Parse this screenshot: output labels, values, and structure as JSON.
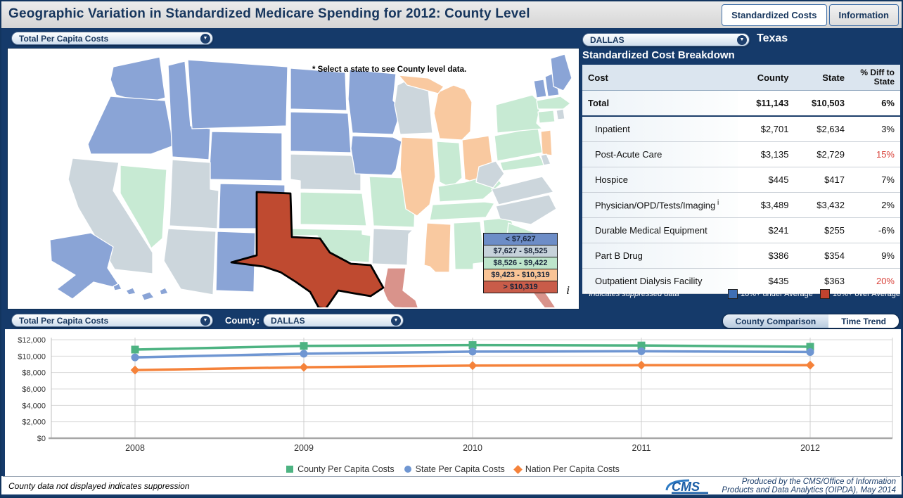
{
  "header": {
    "title": "Geographic Variation in Standardized Medicare Spending for 2012: County Level",
    "tabs": [
      {
        "label": "Standardized Costs",
        "active": true
      },
      {
        "label": "Information",
        "active": false
      }
    ]
  },
  "map_panel": {
    "metric_dropdown": "Total Per Capita Costs",
    "hint": "* Select a state to see County level data.",
    "info_icon": "i",
    "legend": [
      {
        "label": "< $7,627",
        "color": "#6d8dc7"
      },
      {
        "label": "$7,627 - $8,525",
        "color": "#c6d2da"
      },
      {
        "label": "$8,526 - $9,422",
        "color": "#bde5cb"
      },
      {
        "label": "$9,423 - $10,319",
        "color": "#f9c496"
      },
      {
        "label": "> $10,319",
        "color": "#c95c49"
      }
    ],
    "palette": {
      "c1": "#8aa4d6",
      "c2": "#ccd6dc",
      "c3": "#c7ead3",
      "c4": "#f9c9a0",
      "c5": "#d9938b",
      "selected": "#bf4a30"
    },
    "selected_state": "TX",
    "state_categories": {
      "WA": "c1",
      "OR": "c1",
      "CA": "c2",
      "NV": "c3",
      "ID": "c1",
      "MT": "c1",
      "WY": "c1",
      "UT": "c2",
      "CO": "c1",
      "AZ": "c2",
      "NM": "c1",
      "ND": "c1",
      "SD": "c1",
      "NE": "c2",
      "KS": "c3",
      "OK": "c3",
      "TX": "selected",
      "MN": "c1",
      "IA": "c1",
      "MO": "c3",
      "AR": "c2",
      "LA": "c5",
      "WI": "c2",
      "IL": "c4",
      "MI": "c4",
      "IN": "c3",
      "OH": "c4",
      "KY": "c3",
      "TN": "c3",
      "MS": "c4",
      "AL": "c3",
      "GA": "c3",
      "FL": "c5",
      "SC": "c3",
      "NC": "c2",
      "VA": "c2",
      "WV": "c2",
      "PA": "c3",
      "NY": "c3",
      "NJ": "c4",
      "MD": "c3",
      "DE": "c2",
      "VT": "c1",
      "NH": "c1",
      "ME": "c1",
      "MA": "c3",
      "CT": "c3",
      "RI": "c2",
      "AK": "c1",
      "HI": "c1"
    }
  },
  "breakdown_panel": {
    "county_dropdown": "DALLAS",
    "state_label": "Texas",
    "title": "Standardized Cost Breakdown",
    "table": {
      "columns": [
        "Cost",
        "County",
        "State",
        "% Diff to State"
      ],
      "rows": [
        {
          "label": "Total",
          "sup": "",
          "county": "$11,143",
          "state": "$10,503",
          "diff": "6%",
          "bold": true,
          "red": false
        },
        {
          "label": "Inpatient",
          "sup": "",
          "county": "$2,701",
          "state": "$2,634",
          "diff": "3%",
          "bold": false,
          "red": false
        },
        {
          "label": "Post-Acute Care",
          "sup": "",
          "county": "$3,135",
          "state": "$2,729",
          "diff": "15%",
          "bold": false,
          "red": true
        },
        {
          "label": "Hospice",
          "sup": "",
          "county": "$445",
          "state": "$417",
          "diff": "7%",
          "bold": false,
          "red": false
        },
        {
          "label": "Physician/OPD/Tests/Imaging",
          "sup": "i",
          "county": "$3,489",
          "state": "$3,432",
          "diff": "2%",
          "bold": false,
          "red": false
        },
        {
          "label": "Durable Medical Equipment",
          "sup": "",
          "county": "$241",
          "state": "$255",
          "diff": "-6%",
          "bold": false,
          "red": false
        },
        {
          "label": "Part B Drug",
          "sup": "",
          "county": "$386",
          "state": "$354",
          "diff": "9%",
          "bold": false,
          "red": false
        },
        {
          "label": "Outpatient Dialysis Facility",
          "sup": "",
          "county": "$435",
          "state": "$363",
          "diff": "20%",
          "bold": false,
          "red": true
        }
      ]
    },
    "footnote": "* Indicates suppressed data",
    "legend": [
      {
        "label": "10%+ under Average",
        "color": "#3f6fb5"
      },
      {
        "label": "10%+ over Average",
        "color": "#c0432e"
      }
    ]
  },
  "trend_panel": {
    "metric_dropdown": "Total Per Capita Costs",
    "county_label": "County:",
    "county_dropdown": "DALLAS",
    "tabs": [
      {
        "label": "County Comparison",
        "active": false
      },
      {
        "label": "Time Trend",
        "active": true
      }
    ]
  },
  "chart_data": {
    "type": "line",
    "x": [
      2008,
      2009,
      2010,
      2011,
      2012
    ],
    "series": [
      {
        "name": "County Per Capita Costs",
        "marker": "square",
        "color": "#4db382",
        "values": [
          10800,
          11250,
          11350,
          11300,
          11143
        ]
      },
      {
        "name": "State Per Capita Costs",
        "marker": "circle",
        "color": "#6f96d2",
        "values": [
          9850,
          10300,
          10550,
          10600,
          10503
        ]
      },
      {
        "name": "Nation Per Capita Costs",
        "marker": "diamond",
        "color": "#f5823a",
        "values": [
          8300,
          8650,
          8850,
          8900,
          8900
        ]
      }
    ],
    "title": "",
    "xlabel": "",
    "ylabel": "",
    "ylim": [
      0,
      12000
    ],
    "ytick_step": 2000,
    "ytick_labels": [
      "$0",
      "$2,000",
      "$4,000",
      "$6,000",
      "$8,000",
      "$10,000",
      "$12,000"
    ],
    "grid": true,
    "legend_position": "bottom"
  },
  "footer": {
    "left_note": "County data not displayed indicates suppression",
    "logo_text": "CMS",
    "attribution_line1": "Produced by the CMS/Office of Information",
    "attribution_line2": "Products and Data Analytics (OIPDA), May 2014"
  }
}
